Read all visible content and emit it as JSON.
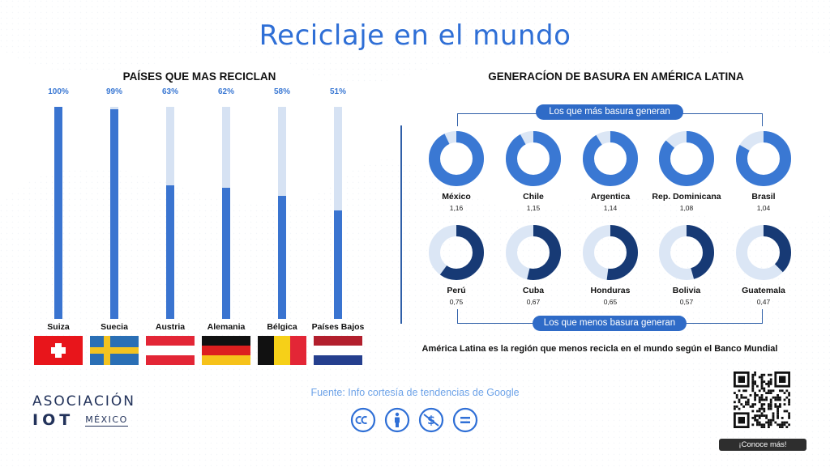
{
  "title": "Reciclaje en el mundo",
  "colors": {
    "accent": "#2f6fd6",
    "bar_fill": "#3a74d0",
    "bar_track": "#d6e2f3",
    "donut_high": "#3a78d3",
    "donut_low": "#173a75",
    "donut_track": "#dbe6f5",
    "source_text": "#6ea3e8"
  },
  "chart_data": [
    {
      "type": "bar",
      "title": "PAÍSES QUE MAS RECICLAN",
      "categories": [
        "Suiza",
        "Suecia",
        "Austria",
        "Alemania",
        "Bélgica",
        "Países Bajos"
      ],
      "values": [
        100,
        99,
        63,
        62,
        58,
        51
      ],
      "value_labels": [
        "100%",
        "99%",
        "63%",
        "62%",
        "58%",
        "51%"
      ],
      "ylim": [
        0,
        100
      ],
      "flags": [
        "switzerland-flag",
        "sweden-flag",
        "austria-flag",
        "germany-flag",
        "belgium-flag",
        "netherlands-flag"
      ]
    },
    {
      "type": "pie",
      "title": "GENERACÍON DE BASURA EN AMÉRICA LATINA",
      "groups": [
        {
          "label": "Los que más basura generan",
          "items": [
            {
              "name": "México",
              "value": 1.16,
              "value_label": "1,16"
            },
            {
              "name": "Chile",
              "value": 1.15,
              "value_label": "1,15"
            },
            {
              "name": "Argentica",
              "value": 1.14,
              "value_label": "1,14"
            },
            {
              "name": "Rep. Dominicana",
              "value": 1.08,
              "value_label": "1,08"
            },
            {
              "name": "Brasil",
              "value": 1.04,
              "value_label": "1,04"
            }
          ]
        },
        {
          "label": "Los que menos basura generan",
          "items": [
            {
              "name": "Perú",
              "value": 0.75,
              "value_label": "0,75"
            },
            {
              "name": "Cuba",
              "value": 0.67,
              "value_label": "0,67"
            },
            {
              "name": "Honduras",
              "value": 0.65,
              "value_label": "0,65"
            },
            {
              "name": "Bolivia",
              "value": 0.57,
              "value_label": "0,57"
            },
            {
              "name": "Guatemala",
              "value": 0.47,
              "value_label": "0,47"
            }
          ]
        }
      ]
    }
  ],
  "footnote": "América Latina es la  región que menos recicla en el mundo según el Banco Mundial",
  "source": "Fuente: Info cortesía de tendencias de Google",
  "license_icons": [
    "cc-icon",
    "by-icon",
    "nc-icon",
    "nd-icon"
  ],
  "logo": {
    "line1": "ASOCIACIÓN",
    "iot": "IOT",
    "country": "MÉXICO"
  },
  "cta": {
    "label": "¡Conoce más!"
  }
}
